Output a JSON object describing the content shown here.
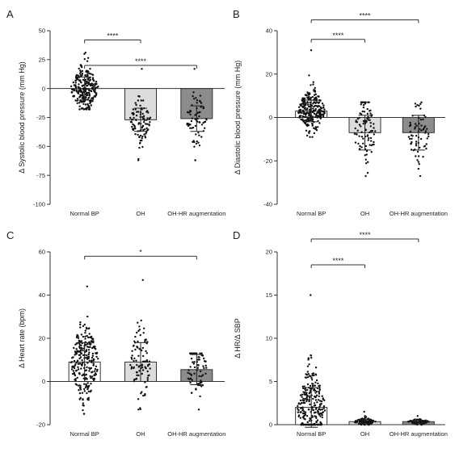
{
  "chart_data": [
    {
      "type": "bar",
      "panel_letter": "A",
      "ylabel": "Δ Systolic blood pressure (mm Hg)",
      "categories": [
        "Normal BP",
        "OH",
        "OH-HR augmentation"
      ],
      "means": [
        0,
        -27,
        -26
      ],
      "sd": [
        10,
        10,
        11
      ],
      "ylim": [
        -100,
        50
      ],
      "yticks": [
        -100,
        -75,
        -50,
        -25,
        0,
        25,
        50
      ],
      "bar_colors": [
        "#ffffff",
        "#dcdcdc",
        "#8c8c8c"
      ],
      "point_range": [
        [
          -18,
          31
        ],
        [
          -62,
          17
        ],
        [
          -62,
          17
        ]
      ],
      "significance": [
        {
          "from": 0,
          "to": 1,
          "label": "****",
          "y": 42
        },
        {
          "from": 0,
          "to": 2,
          "label": "****",
          "y": 20
        }
      ]
    },
    {
      "type": "bar",
      "panel_letter": "B",
      "ylabel": "Δ Diastolic blood pressure (mm Hg)",
      "categories": [
        "Normal BP",
        "OH",
        "OH-HR augmentation"
      ],
      "means": [
        3,
        -7,
        -7
      ],
      "sd": [
        5,
        8,
        8
      ],
      "ylim": [
        -40,
        40
      ],
      "yticks": [
        -40,
        -20,
        0,
        20,
        40
      ],
      "bar_colors": [
        "#ffffff",
        "#dcdcdc",
        "#8c8c8c"
      ],
      "point_range": [
        [
          -9,
          31
        ],
        [
          -27,
          7
        ],
        [
          -27,
          7
        ]
      ],
      "significance": [
        {
          "from": 0,
          "to": 1,
          "label": "****",
          "y": 36
        },
        {
          "from": 0,
          "to": 2,
          "label": "****",
          "y": 45
        }
      ]
    },
    {
      "type": "bar",
      "panel_letter": "C",
      "ylabel": "Δ Heart rate (bpm)",
      "categories": [
        "Normal BP",
        "OH",
        "OH-HR augmentation"
      ],
      "means": [
        9,
        9,
        5.5
      ],
      "sd": [
        9,
        9,
        7
      ],
      "ylim": [
        -20,
        60
      ],
      "yticks": [
        -20,
        0,
        20,
        40,
        60
      ],
      "bar_colors": [
        "#ffffff",
        "#dcdcdc",
        "#8c8c8c"
      ],
      "point_range": [
        [
          -15,
          44
        ],
        [
          -13,
          47
        ],
        [
          -13,
          13
        ]
      ],
      "significance": [
        {
          "from": 0,
          "to": 2,
          "label": "*",
          "y": 58
        }
      ]
    },
    {
      "type": "bar",
      "panel_letter": "D",
      "ylabel": "Δ HR/Δ SBP",
      "categories": [
        "Normal BP",
        "OH",
        "OH-HR augmentation"
      ],
      "means": [
        2,
        0.35,
        0.35
      ],
      "sd": [
        2.3,
        0.2,
        0.15
      ],
      "ylim": [
        0,
        20
      ],
      "yticks": [
        0,
        5,
        10,
        15,
        20
      ],
      "bar_colors": [
        "#ffffff",
        "#dcdcdc",
        "#8c8c8c"
      ],
      "point_range": [
        [
          0,
          15
        ],
        [
          0,
          1.5
        ],
        [
          0,
          1
        ]
      ],
      "significance": [
        {
          "from": 0,
          "to": 1,
          "label": "****",
          "y": 18.5
        },
        {
          "from": 0,
          "to": 2,
          "label": "****",
          "y": 21.5
        }
      ]
    }
  ]
}
